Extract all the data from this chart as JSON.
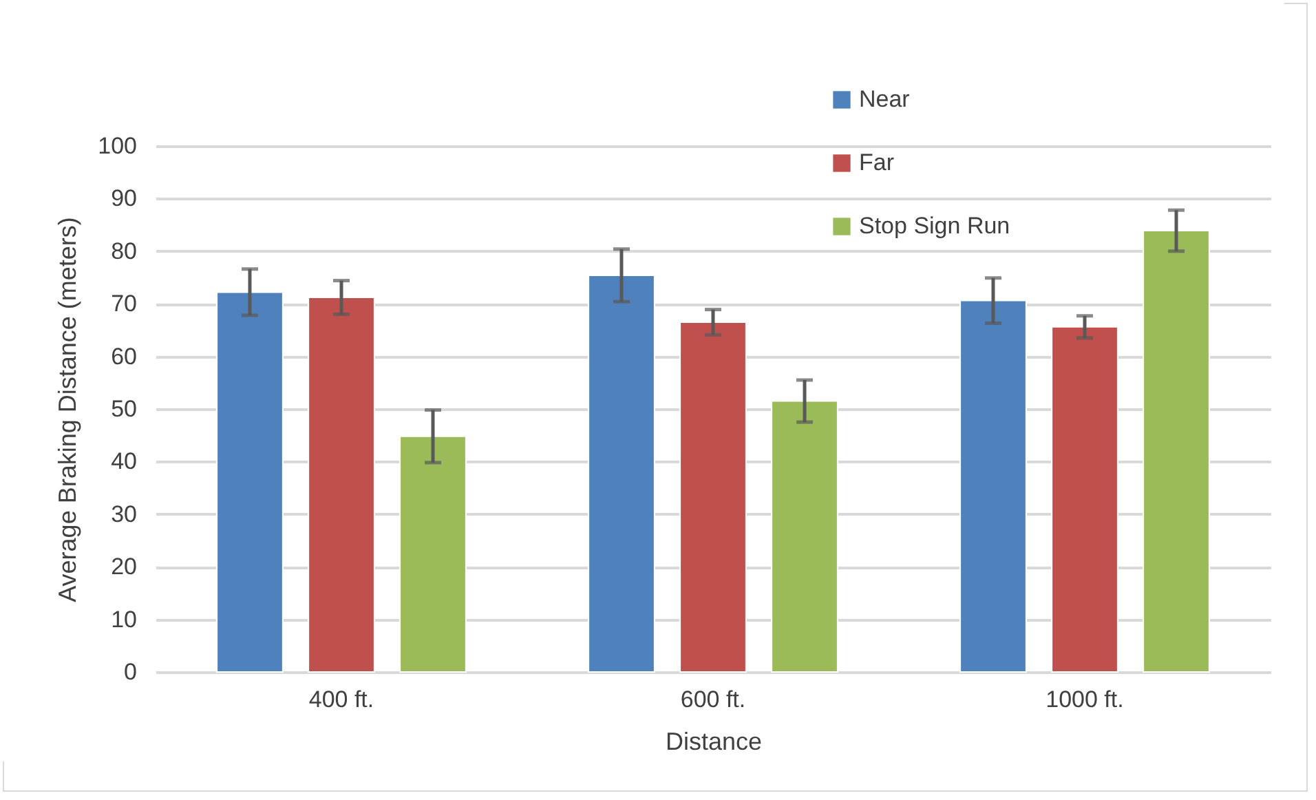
{
  "chart_data": {
    "type": "bar",
    "xlabel": "Distance",
    "ylabel": "Average Braking Distance (meters)",
    "categories": [
      "400 ft.",
      "600 ft.",
      "1000 ft."
    ],
    "series": [
      {
        "name": "Near",
        "color": "#4f81bd",
        "values": [
          72.2,
          75.4,
          70.6
        ],
        "errors": [
          4.4,
          5,
          4.3
        ]
      },
      {
        "name": "Far",
        "color": "#c0504d",
        "values": [
          71.2,
          66.5,
          65.6
        ],
        "errors": [
          3.2,
          2.4,
          2.1
        ]
      },
      {
        "name": "Stop Sign Run",
        "color": "#9bbb59",
        "values": [
          44.8,
          51.5,
          83.9
        ],
        "errors": [
          5,
          4,
          3.9
        ]
      }
    ],
    "ylim": [
      0,
      100
    ],
    "yticks": [
      0,
      10,
      20,
      30,
      40,
      50,
      60,
      70,
      80,
      90,
      100
    ],
    "grid": "y",
    "legend": "top right"
  }
}
